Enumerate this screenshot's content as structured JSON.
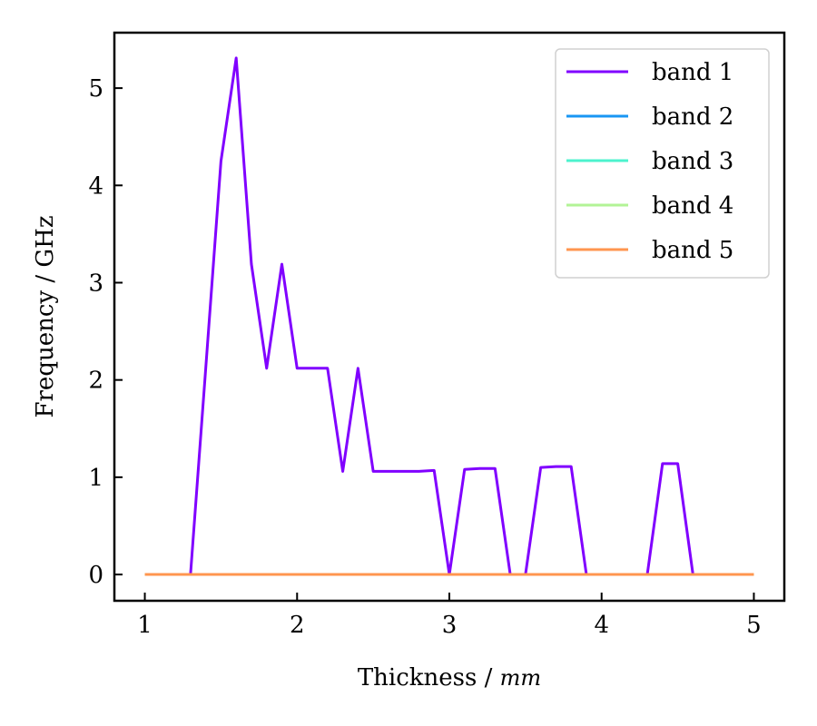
{
  "chart_data": {
    "type": "line",
    "xlabel": "Thickness / ",
    "xlabel_unit": "mm",
    "ylabel": "Frequency / GHz",
    "xlim": [
      0.8,
      5.2
    ],
    "ylim": [
      -0.27,
      5.57
    ],
    "x_ticks": [
      1,
      2,
      3,
      4,
      5
    ],
    "y_ticks": [
      0,
      1,
      2,
      3,
      4,
      5
    ],
    "grid": false,
    "legend_position": "top-right",
    "x": [
      1.0,
      1.1,
      1.2,
      1.3,
      1.4,
      1.5,
      1.6,
      1.7,
      1.8,
      1.9,
      2.0,
      2.1,
      2.2,
      2.3,
      2.4,
      2.5,
      2.6,
      2.7,
      2.8,
      2.9,
      3.0,
      3.1,
      3.2,
      3.3,
      3.4,
      3.5,
      3.6,
      3.7,
      3.8,
      3.9,
      4.0,
      4.1,
      4.2,
      4.3,
      4.4,
      4.5,
      4.6,
      4.7,
      4.8,
      4.9,
      5.0
    ],
    "series": [
      {
        "name": "band 1",
        "color": "#8000ff",
        "values": [
          0,
          0,
          0,
          0,
          2.12,
          4.25,
          5.31,
          3.19,
          2.12,
          3.19,
          2.12,
          2.12,
          2.12,
          1.06,
          2.12,
          1.06,
          1.06,
          1.06,
          1.06,
          1.07,
          0,
          1.08,
          1.09,
          1.09,
          0,
          0,
          1.1,
          1.11,
          1.11,
          0,
          0,
          0,
          0,
          0,
          1.14,
          1.14,
          0,
          0,
          0,
          0,
          0
        ]
      },
      {
        "name": "band 2",
        "color": "#1996f3",
        "values": [
          0,
          0,
          0,
          0,
          0,
          0,
          0,
          0,
          0,
          0,
          0,
          0,
          0,
          0,
          0,
          0,
          0,
          0,
          0,
          0,
          0,
          0,
          0,
          0,
          0,
          0,
          0,
          0,
          0,
          0,
          0,
          0,
          0,
          0,
          0,
          0,
          0,
          0,
          0,
          0,
          0
        ]
      },
      {
        "name": "band 3",
        "color": "#4df3ce",
        "values": [
          0,
          0,
          0,
          0,
          0,
          0,
          0,
          0,
          0,
          0,
          0,
          0,
          0,
          0,
          0,
          0,
          0,
          0,
          0,
          0,
          0,
          0,
          0,
          0,
          0,
          0,
          0,
          0,
          0,
          0,
          0,
          0,
          0,
          0,
          0,
          0,
          0,
          0,
          0,
          0,
          0
        ]
      },
      {
        "name": "band 4",
        "color": "#b2f396",
        "values": [
          0,
          0,
          0,
          0,
          0,
          0,
          0,
          0,
          0,
          0,
          0,
          0,
          0,
          0,
          0,
          0,
          0,
          0,
          0,
          0,
          0,
          0,
          0,
          0,
          0,
          0,
          0,
          0,
          0,
          0,
          0,
          0,
          0,
          0,
          0,
          0,
          0,
          0,
          0,
          0,
          0
        ]
      },
      {
        "name": "band 5",
        "color": "#ff964f",
        "values": [
          0,
          0,
          0,
          0,
          0,
          0,
          0,
          0,
          0,
          0,
          0,
          0,
          0,
          0,
          0,
          0,
          0,
          0,
          0,
          0,
          0,
          0,
          0,
          0,
          0,
          0,
          0,
          0,
          0,
          0,
          0,
          0,
          0,
          0,
          0,
          0,
          0,
          0,
          0,
          0,
          0
        ]
      }
    ]
  }
}
